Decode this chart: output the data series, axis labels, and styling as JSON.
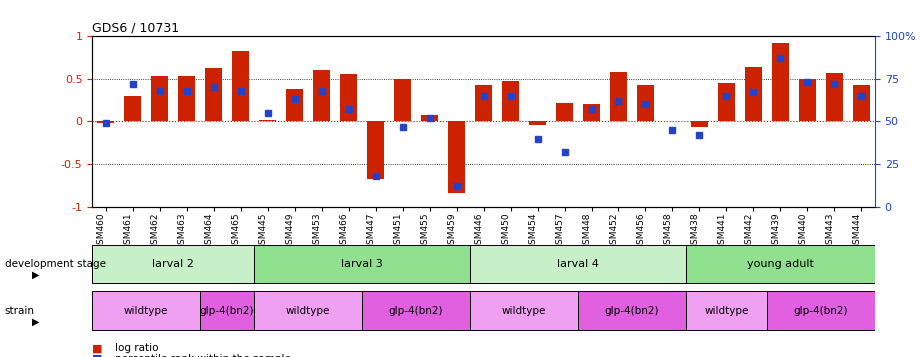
{
  "title": "GDS6 / 10731",
  "samples": [
    "GSM460",
    "GSM461",
    "GSM462",
    "GSM463",
    "GSM464",
    "GSM465",
    "GSM445",
    "GSM449",
    "GSM453",
    "GSM466",
    "GSM447",
    "GSM451",
    "GSM455",
    "GSM459",
    "GSM446",
    "GSM450",
    "GSM454",
    "GSM457",
    "GSM448",
    "GSM452",
    "GSM456",
    "GSM458",
    "GSM438",
    "GSM441",
    "GSM442",
    "GSM439",
    "GSM440",
    "GSM443",
    "GSM444"
  ],
  "log_ratio": [
    -0.02,
    0.3,
    0.53,
    0.53,
    0.62,
    0.82,
    0.02,
    0.38,
    0.6,
    0.55,
    -0.67,
    0.5,
    0.08,
    -0.84,
    0.42,
    0.47,
    -0.04,
    0.22,
    0.2,
    0.58,
    0.42,
    0.0,
    -0.07,
    0.45,
    0.63,
    0.92,
    0.5,
    0.57,
    0.42
  ],
  "percentile": [
    49,
    72,
    68,
    68,
    70,
    68,
    55,
    63,
    68,
    57,
    18,
    47,
    52,
    12,
    65,
    65,
    40,
    32,
    57,
    62,
    60,
    45,
    42,
    65,
    67,
    87,
    73,
    72,
    65
  ],
  "dev_stages": [
    {
      "label": "larval 2",
      "start": 0,
      "end": 6,
      "color": "#c8f0c8"
    },
    {
      "label": "larval 3",
      "start": 6,
      "end": 14,
      "color": "#90e090"
    },
    {
      "label": "larval 4",
      "start": 14,
      "end": 22,
      "color": "#c8f0c8"
    },
    {
      "label": "young adult",
      "start": 22,
      "end": 29,
      "color": "#90e090"
    }
  ],
  "strains": [
    {
      "label": "wildtype",
      "start": 0,
      "end": 4,
      "color": "#f0a0f0"
    },
    {
      "label": "glp-4(bn2)",
      "start": 4,
      "end": 6,
      "color": "#e060e0"
    },
    {
      "label": "wildtype",
      "start": 6,
      "end": 10,
      "color": "#f0a0f0"
    },
    {
      "label": "glp-4(bn2)",
      "start": 10,
      "end": 14,
      "color": "#e060e0"
    },
    {
      "label": "wildtype",
      "start": 14,
      "end": 18,
      "color": "#f0a0f0"
    },
    {
      "label": "glp-4(bn2)",
      "start": 18,
      "end": 22,
      "color": "#e060e0"
    },
    {
      "label": "wildtype",
      "start": 22,
      "end": 25,
      "color": "#f0a0f0"
    },
    {
      "label": "glp-4(bn2)",
      "start": 25,
      "end": 29,
      "color": "#e060e0"
    }
  ],
  "ylim": [
    -1,
    1
  ],
  "bar_color": "#cc2200",
  "dot_color": "#2244cc",
  "bar_width": 0.6
}
